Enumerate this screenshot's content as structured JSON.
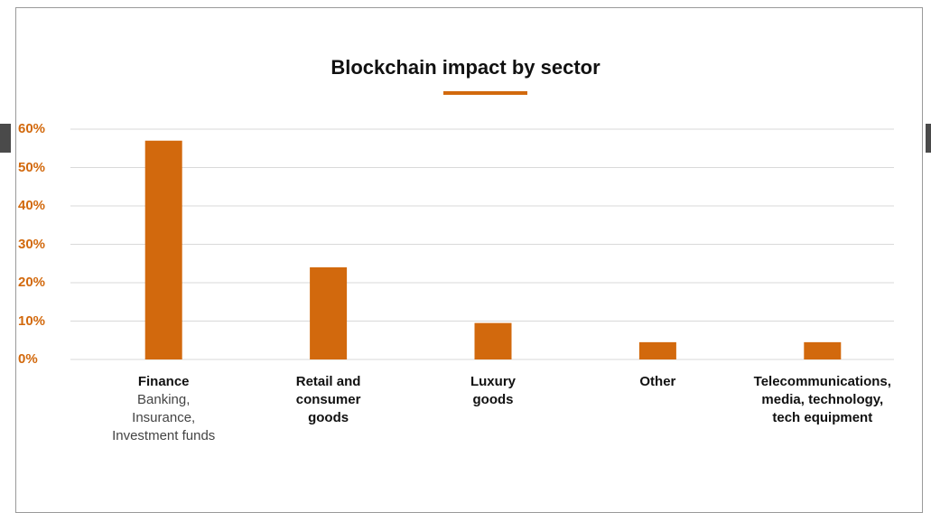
{
  "chart_data": {
    "type": "bar",
    "title": "Blockchain impact by sector",
    "categories": [
      {
        "label": "Finance",
        "sublabel": "Banking,\nInsurance,\nInvestment funds"
      },
      {
        "label": "Retail and\nconsumer\ngoods",
        "sublabel": ""
      },
      {
        "label": "Luxury\ngoods",
        "sublabel": ""
      },
      {
        "label": "Other",
        "sublabel": ""
      },
      {
        "label": "Telecommunications,\nmedia, technology,\ntech equipment",
        "sublabel": ""
      }
    ],
    "values": [
      57,
      24,
      9.5,
      4.5,
      4.5
    ],
    "yticks": [
      "0%",
      "10%",
      "20%",
      "30%",
      "40%",
      "50%",
      "60%"
    ],
    "ylim": [
      0,
      60
    ],
    "grid": true,
    "colors": {
      "bar": "#d2690d",
      "axis_text": "#d2690d",
      "grid": "#d9d9d9"
    }
  }
}
